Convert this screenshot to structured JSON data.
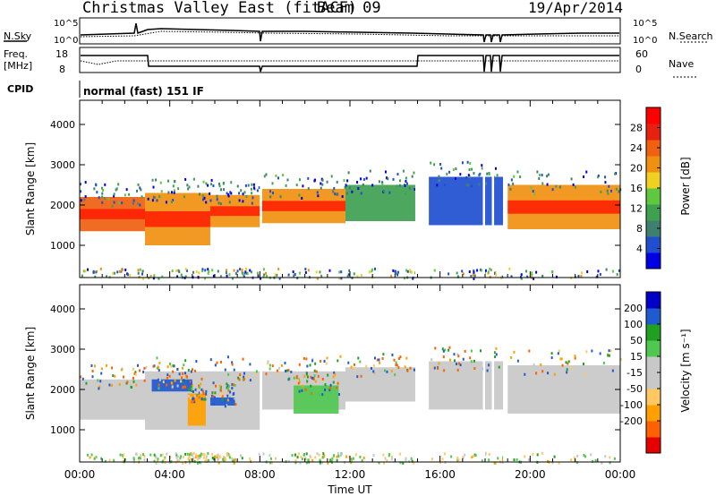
{
  "header": {
    "title": "Christmas Valley East (fitACF)",
    "beam": "Beam 09",
    "date": "19/Apr/2014"
  },
  "noise_panel": {
    "left_label": "N.Sky",
    "right_label": "N.Search",
    "left_ticks": [
      "10^5",
      "10^0"
    ],
    "right_ticks": [
      "10^5",
      "10^0"
    ]
  },
  "freq_panel": {
    "left_label_1": "Freq.",
    "left_label_2": "[MHz]",
    "right_label": "Nave",
    "left_ticks": [
      "18",
      "8"
    ],
    "right_ticks": [
      "60",
      "0"
    ]
  },
  "cpid": {
    "label": "CPID",
    "value": "normal (fast) 151 IF"
  },
  "colors": {
    "power_scale": [
      "#0000e6",
      "#1f4fd0",
      "#3f7f6f",
      "#3fa050",
      "#60c840",
      "#f0d020",
      "#f09010",
      "#f06010",
      "#e82010",
      "#ff0000"
    ],
    "velocity_scale": [
      "#e60000",
      "#ff6000",
      "#ffa000",
      "#ffc860",
      "#c8c8c8",
      "#c8c8c8",
      "#50c850",
      "#20a020",
      "#205ad0",
      "#0000c8"
    ],
    "ground_scatter": "#c0c0c0"
  },
  "chart_data": [
    {
      "type": "heatmap",
      "name": "power",
      "ylabel": "Slant Range [km]",
      "yticks": [
        "1000",
        "2000",
        "3000",
        "4000"
      ],
      "ylim": [
        200,
        4600
      ],
      "xlim": [
        0,
        24
      ],
      "colorbar_label": "Power [dB]",
      "colorbar_ticks": [
        "4",
        "8",
        "12",
        "16",
        "20",
        "24",
        "28"
      ],
      "bands": [
        {
          "t0": 0.0,
          "t1": 2.9,
          "r0": 1350,
          "r1": 2200,
          "value": 24
        },
        {
          "t0": 2.9,
          "t1": 5.8,
          "r0": 1000,
          "r1": 2300,
          "value": 22
        },
        {
          "t0": 5.8,
          "t1": 8.0,
          "r0": 1450,
          "r1": 2250,
          "value": 20
        },
        {
          "t0": 8.1,
          "t1": 11.8,
          "r0": 1550,
          "r1": 2400,
          "value": 22
        },
        {
          "t0": 11.8,
          "t1": 14.9,
          "r0": 1600,
          "r1": 2500,
          "value": 10
        },
        {
          "t0": 15.5,
          "t1": 18.8,
          "r0": 1500,
          "r1": 2700,
          "value": 6
        },
        {
          "t0": 19.0,
          "t1": 24.0,
          "r0": 1400,
          "r1": 2500,
          "value": 22
        }
      ]
    },
    {
      "type": "heatmap",
      "name": "velocity",
      "ylabel": "Slant Range [km]",
      "yticks": [
        "1000",
        "2000",
        "3000",
        "4000"
      ],
      "ylim": [
        200,
        4600
      ],
      "xlim": [
        0,
        24
      ],
      "xlabel": "Time UT",
      "xticks": [
        "00:00",
        "04:00",
        "08:00",
        "12:00",
        "16:00",
        "20:00",
        "00:00"
      ],
      "colorbar_label": "Velocity [m s⁻¹]",
      "colorbar_ticks": [
        "200",
        "100",
        "50",
        "15",
        "-15",
        "-50",
        "-100",
        "-200"
      ],
      "bands": [
        {
          "t0": 0.0,
          "t1": 2.9,
          "r0": 1250,
          "r1": 2250,
          "value": 0
        },
        {
          "t0": 2.9,
          "t1": 8.0,
          "r0": 1000,
          "r1": 2450,
          "value": 0
        },
        {
          "t0": 3.2,
          "t1": 5.0,
          "r0": 1950,
          "r1": 2250,
          "value": 180
        },
        {
          "t0": 4.8,
          "t1": 5.6,
          "r0": 1100,
          "r1": 1900,
          "value": -60
        },
        {
          "t0": 5.8,
          "t1": 6.9,
          "r0": 1600,
          "r1": 1800,
          "value": 180
        },
        {
          "t0": 8.1,
          "t1": 11.8,
          "r0": 1500,
          "r1": 2450,
          "value": 0
        },
        {
          "t0": 9.5,
          "t1": 11.5,
          "r0": 1400,
          "r1": 2100,
          "value": 40
        },
        {
          "t0": 11.8,
          "t1": 14.9,
          "r0": 1700,
          "r1": 2550,
          "value": 0
        },
        {
          "t0": 15.5,
          "t1": 18.8,
          "r0": 1500,
          "r1": 2700,
          "value": 0
        },
        {
          "t0": 19.0,
          "t1": 24.0,
          "r0": 1400,
          "r1": 2600,
          "value": 0
        }
      ]
    }
  ]
}
